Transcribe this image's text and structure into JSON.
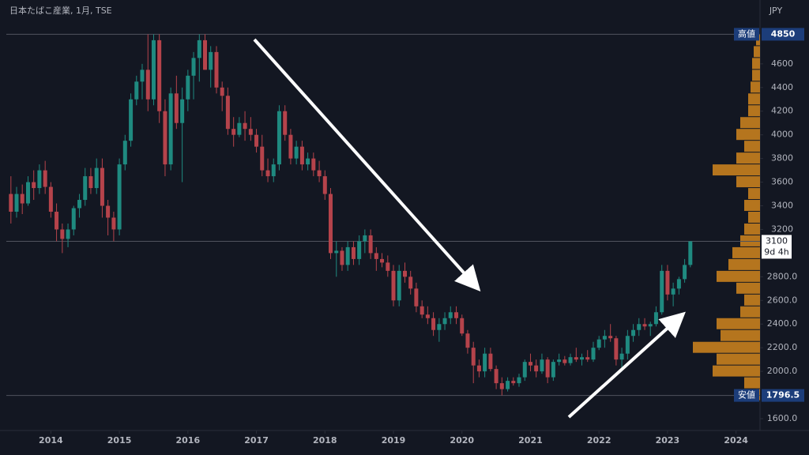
{
  "chart_data": {
    "type": "candlestick",
    "title": "日本たばこ産業, 1月, TSE",
    "currency": "JPY",
    "colors": {
      "up": "#1f8a80",
      "down": "#b5434b",
      "profile": "#c8801e"
    },
    "x": [
      2013.417,
      2013.5,
      2013.583,
      2013.667,
      2013.75,
      2013.833,
      2013.917,
      2014,
      2014.083,
      2014.167,
      2014.25,
      2014.333,
      2014.417,
      2014.5,
      2014.583,
      2014.667,
      2014.75,
      2014.833,
      2014.917,
      2015,
      2015.083,
      2015.167,
      2015.25,
      2015.333,
      2015.417,
      2015.5,
      2015.583,
      2015.667,
      2015.75,
      2015.833,
      2015.917,
      2016,
      2016.083,
      2016.167,
      2016.25,
      2016.333,
      2016.417,
      2016.5,
      2016.583,
      2016.667,
      2016.75,
      2016.833,
      2016.917,
      2017,
      2017.083,
      2017.167,
      2017.25,
      2017.333,
      2017.417,
      2017.5,
      2017.583,
      2017.667,
      2017.75,
      2017.833,
      2017.917,
      2018,
      2018.083,
      2018.167,
      2018.25,
      2018.333,
      2018.417,
      2018.5,
      2018.583,
      2018.667,
      2018.75,
      2018.833,
      2018.917,
      2019,
      2019.083,
      2019.167,
      2019.25,
      2019.333,
      2019.417,
      2019.5,
      2019.583,
      2019.667,
      2019.75,
      2019.833,
      2019.917,
      2020,
      2020.083,
      2020.167,
      2020.25,
      2020.333,
      2020.417,
      2020.5,
      2020.583,
      2020.667,
      2020.75,
      2020.833,
      2020.917,
      2021,
      2021.083,
      2021.167,
      2021.25,
      2021.333,
      2021.417,
      2021.5,
      2021.583,
      2021.667,
      2021.75,
      2021.833,
      2021.917,
      2022,
      2022.083,
      2022.167,
      2022.25,
      2022.333,
      2022.417,
      2022.5,
      2022.583,
      2022.667,
      2022.75,
      2022.833,
      2022.917,
      2023,
      2023.083,
      2023.167,
      2023.25,
      2023.333
    ],
    "candles": [
      [
        3500,
        3650,
        3250,
        3350
      ],
      [
        3350,
        3560,
        3300,
        3500
      ],
      [
        3500,
        3580,
        3330,
        3420
      ],
      [
        3420,
        3650,
        3400,
        3600
      ],
      [
        3600,
        3700,
        3450,
        3550
      ],
      [
        3550,
        3750,
        3500,
        3700
      ],
      [
        3700,
        3780,
        3500,
        3560
      ],
      [
        3560,
        3600,
        3300,
        3350
      ],
      [
        3350,
        3420,
        3100,
        3200
      ],
      [
        3200,
        3250,
        3000,
        3120
      ],
      [
        3120,
        3250,
        3050,
        3200
      ],
      [
        3200,
        3400,
        3150,
        3380
      ],
      [
        3380,
        3500,
        3300,
        3450
      ],
      [
        3450,
        3720,
        3400,
        3650
      ],
      [
        3650,
        3720,
        3500,
        3550
      ],
      [
        3550,
        3800,
        3500,
        3720
      ],
      [
        3720,
        3800,
        3300,
        3400
      ],
      [
        3400,
        3450,
        3150,
        3300
      ],
      [
        3300,
        3350,
        3100,
        3200
      ],
      [
        3200,
        3800,
        3150,
        3750
      ],
      [
        3750,
        4000,
        3700,
        3950
      ],
      [
        3950,
        4350,
        3900,
        4300
      ],
      [
        4300,
        4500,
        4250,
        4450
      ],
      [
        4450,
        4600,
        4300,
        4550
      ],
      [
        4550,
        4850,
        4200,
        4300
      ],
      [
        4300,
        4850,
        4250,
        4800
      ],
      [
        4800,
        4850,
        4100,
        4200
      ],
      [
        4200,
        4300,
        3650,
        3750
      ],
      [
        3750,
        4400,
        3700,
        4350
      ],
      [
        4350,
        4500,
        4050,
        4100
      ],
      [
        4100,
        4400,
        3600,
        4300
      ],
      [
        4300,
        4550,
        4200,
        4500
      ],
      [
        4500,
        4700,
        4300,
        4650
      ],
      [
        4650,
        4850,
        4450,
        4800
      ],
      [
        4800,
        4850,
        4550,
        4550
      ],
      [
        4550,
        4750,
        4400,
        4700
      ],
      [
        4700,
        4750,
        4350,
        4400
      ],
      [
        4400,
        4450,
        4200,
        4330
      ],
      [
        4330,
        4400,
        4000,
        4050
      ],
      [
        4050,
        4150,
        3900,
        4000
      ],
      [
        4000,
        4150,
        3980,
        4100
      ],
      [
        4100,
        4200,
        3950,
        4050
      ],
      [
        4050,
        4150,
        3950,
        4000
      ],
      [
        4000,
        4050,
        3850,
        3900
      ],
      [
        3900,
        4000,
        3650,
        3700
      ],
      [
        3700,
        3800,
        3600,
        3650
      ],
      [
        3650,
        3800,
        3600,
        3750
      ],
      [
        3750,
        4250,
        3700,
        4200
      ],
      [
        4200,
        4250,
        3950,
        4000
      ],
      [
        4000,
        4050,
        3750,
        3800
      ],
      [
        3800,
        3950,
        3750,
        3900
      ],
      [
        3900,
        3950,
        3700,
        3750
      ],
      [
        3750,
        3850,
        3700,
        3800
      ],
      [
        3800,
        3850,
        3650,
        3700
      ],
      [
        3700,
        3780,
        3600,
        3650
      ],
      [
        3650,
        3700,
        3450,
        3500
      ],
      [
        3500,
        3550,
        2950,
        3000
      ],
      [
        3000,
        3100,
        2800,
        3020
      ],
      [
        3020,
        3050,
        2850,
        2900
      ],
      [
        2900,
        3100,
        2850,
        3050
      ],
      [
        3050,
        3100,
        2900,
        2950
      ],
      [
        2950,
        3150,
        2900,
        3100
      ],
      [
        3100,
        3200,
        3000,
        3150
      ],
      [
        3150,
        3200,
        2950,
        3000
      ],
      [
        3000,
        3050,
        2850,
        2950
      ],
      [
        2950,
        3000,
        2880,
        2920
      ],
      [
        2920,
        2980,
        2800,
        2850
      ],
      [
        2850,
        2900,
        2550,
        2600
      ],
      [
        2600,
        2900,
        2550,
        2850
      ],
      [
        2850,
        2920,
        2750,
        2800
      ],
      [
        2800,
        2850,
        2650,
        2700
      ],
      [
        2700,
        2750,
        2500,
        2550
      ],
      [
        2550,
        2600,
        2450,
        2480
      ],
      [
        2480,
        2550,
        2400,
        2450
      ],
      [
        2450,
        2500,
        2300,
        2350
      ],
      [
        2350,
        2450,
        2250,
        2400
      ],
      [
        2400,
        2500,
        2350,
        2450
      ],
      [
        2450,
        2550,
        2400,
        2500
      ],
      [
        2500,
        2550,
        2400,
        2450
      ],
      [
        2450,
        2480,
        2300,
        2320
      ],
      [
        2320,
        2350,
        2150,
        2200
      ],
      [
        2200,
        2250,
        1900,
        2050
      ],
      [
        2050,
        2100,
        1950,
        2000
      ],
      [
        2000,
        2200,
        1950,
        2150
      ],
      [
        2150,
        2200,
        2000,
        2020
      ],
      [
        2020,
        2050,
        1850,
        1900
      ],
      [
        1900,
        1950,
        1796.5,
        1850
      ],
      [
        1850,
        1950,
        1830,
        1920
      ],
      [
        1920,
        1950,
        1880,
        1900
      ],
      [
        1900,
        1980,
        1870,
        1950
      ],
      [
        1950,
        2100,
        1920,
        2080
      ],
      [
        2080,
        2150,
        2000,
        2050
      ],
      [
        2050,
        2100,
        1950,
        2000
      ],
      [
        2000,
        2150,
        1980,
        2100
      ],
      [
        2100,
        2120,
        1900,
        1950
      ],
      [
        1950,
        2100,
        1920,
        2080
      ],
      [
        2080,
        2150,
        2050,
        2100
      ],
      [
        2100,
        2130,
        2050,
        2070
      ],
      [
        2070,
        2150,
        2050,
        2120
      ],
      [
        2120,
        2200,
        2080,
        2100
      ],
      [
        2100,
        2150,
        2050,
        2120
      ],
      [
        2120,
        2180,
        2080,
        2100
      ],
      [
        2100,
        2250,
        2080,
        2200
      ],
      [
        2200,
        2300,
        2180,
        2270
      ],
      [
        2270,
        2350,
        2200,
        2300
      ],
      [
        2300,
        2400,
        2250,
        2280
      ],
      [
        2280,
        2300,
        2050,
        2100
      ],
      [
        2100,
        2200,
        2000,
        2150
      ],
      [
        2150,
        2350,
        2100,
        2300
      ],
      [
        2300,
        2400,
        2250,
        2350
      ],
      [
        2350,
        2450,
        2300,
        2400
      ],
      [
        2400,
        2450,
        2350,
        2380
      ],
      [
        2380,
        2420,
        2300,
        2400
      ],
      [
        2400,
        2550,
        2380,
        2500
      ],
      [
        2500,
        2900,
        2480,
        2850
      ],
      [
        2850,
        2900,
        2600,
        2650
      ],
      [
        2650,
        2750,
        2550,
        2700
      ],
      [
        2700,
        2800,
        2650,
        2780
      ],
      [
        2780,
        2950,
        2750,
        2900
      ],
      [
        2900,
        3100,
        2880,
        3100
      ]
    ],
    "volume_profile": {
      "prices": [
        1800,
        1900,
        2000,
        2100,
        2200,
        2300,
        2400,
        2500,
        2600,
        2700,
        2800,
        2900,
        3000,
        3100,
        3200,
        3300,
        3400,
        3500,
        3600,
        3700,
        3800,
        3900,
        4000,
        4100,
        4200,
        4300,
        4400,
        4500,
        4600,
        4700,
        4800
      ],
      "values": [
        5,
        20,
        60,
        55,
        85,
        50,
        55,
        25,
        20,
        30,
        55,
        40,
        35,
        25,
        20,
        15,
        20,
        15,
        30,
        60,
        30,
        20,
        30,
        25,
        15,
        15,
        12,
        10,
        10,
        8,
        5
      ]
    },
    "xlim": [
      2013.35,
      2024.35
    ],
    "xticks": [
      2014,
      2015,
      2016,
      2017,
      2018,
      2019,
      2020,
      2021,
      2022,
      2023,
      2024
    ],
    "ylim": [
      1500,
      5140
    ],
    "yticks": [
      {
        "value": 1600,
        "label": "1600.0"
      },
      {
        "value": 2000,
        "label": "2000.0"
      },
      {
        "value": 2200,
        "label": "2200.0"
      },
      {
        "value": 2400,
        "label": "2400.0"
      },
      {
        "value": 2600,
        "label": "2600.0"
      },
      {
        "value": 2800,
        "label": "2800.0"
      },
      3200,
      3400,
      3600,
      3800,
      4000,
      4200,
      4400,
      4600
    ],
    "high": {
      "label": "高値",
      "value": 4850
    },
    "low": {
      "label": "安値",
      "value": 1796.5
    },
    "last": {
      "value": 3100,
      "countdown": "9d 4h"
    }
  }
}
